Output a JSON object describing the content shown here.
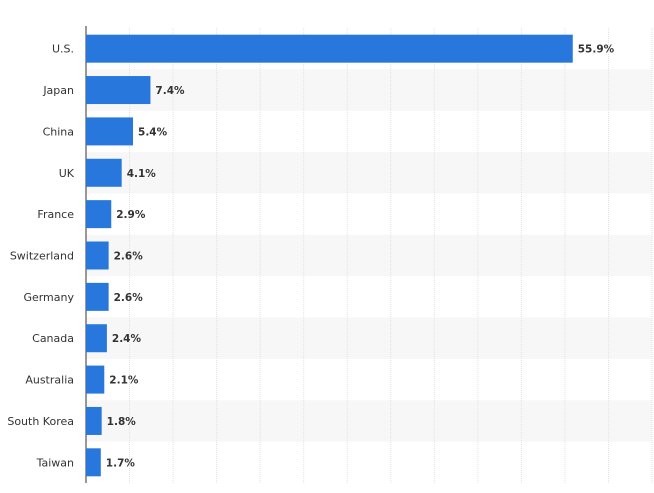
{
  "chart_data": {
    "type": "bar",
    "orientation": "horizontal",
    "categories": [
      "U.S.",
      "Japan",
      "China",
      "UK",
      "France",
      "Switzerland",
      "Germany",
      "Canada",
      "Australia",
      "South Korea",
      "Taiwan"
    ],
    "values": [
      55.9,
      7.4,
      5.4,
      4.1,
      2.9,
      2.6,
      2.6,
      2.4,
      2.1,
      1.8,
      1.7
    ],
    "value_labels": [
      "55.9%",
      "7.4%",
      "5.4%",
      "4.1%",
      "2.9%",
      "2.6%",
      "2.6%",
      "2.4%",
      "2.1%",
      "1.8%",
      "1.7%"
    ],
    "xlim": [
      0,
      65
    ],
    "grid": true,
    "bar_color": "#2877dc",
    "stripe_color": "#f7f7f7",
    "text_color": "#333333"
  }
}
